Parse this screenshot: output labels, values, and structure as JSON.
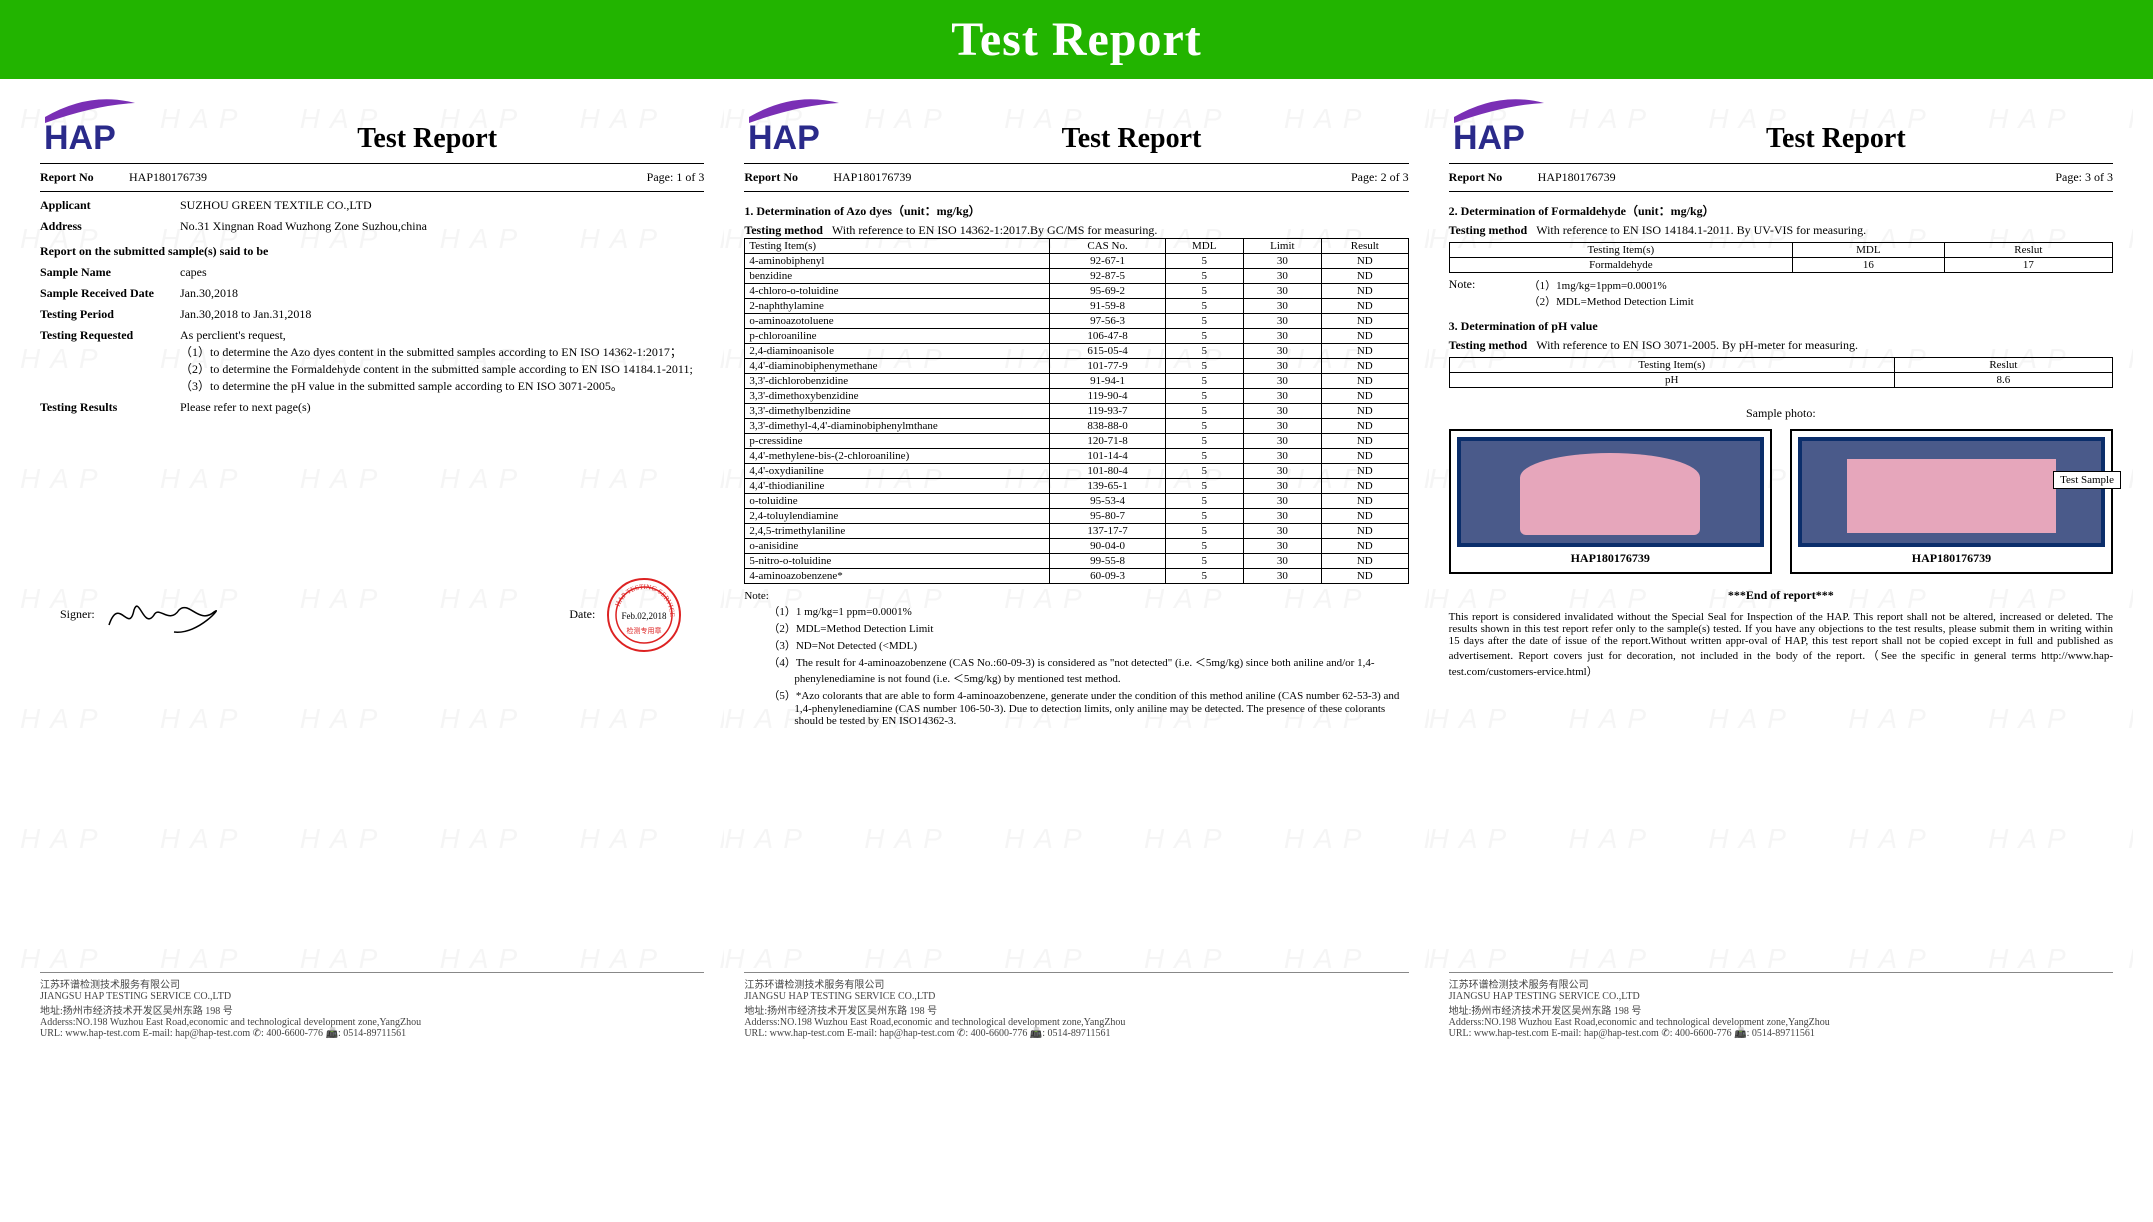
{
  "banner": {
    "title": "Test Report",
    "bg": "#22b400",
    "fg": "#ffffff"
  },
  "logo": {
    "text": "HAP",
    "swoosh_color": "#7a2fb5",
    "text_color": "#2a2a8a"
  },
  "common": {
    "page_title": "Test Report",
    "report_no_label": "Report No",
    "report_no": "HAP180176739",
    "page_label": "Page:"
  },
  "page1": {
    "page_of": "1 of 3",
    "applicant_label": "Applicant",
    "applicant": "SUZHOU GREEN TEXTILE CO.,LTD",
    "address_label": "Address",
    "address": "No.31 Xingnan Road Wuzhong Zone Suzhou,china",
    "sample_header": "Report on the submitted sample(s) said to be",
    "sample_name_label": "Sample Name",
    "sample_name": "capes",
    "recv_label": "Sample Received Date",
    "recv": "Jan.30,2018",
    "period_label": "Testing Period",
    "period": "Jan.30,2018 to Jan.31,2018",
    "req_label": "Testing Requested",
    "req_intro": "As perclient's request,",
    "req_items": [
      "（1）to determine the Azo dyes content in the submitted samples according to EN ISO 14362-1:2017；",
      "（2）to determine the Formaldehyde content in the submitted sample according to EN ISO 14184.1-2011;",
      "（3）to determine the pH value in the submitted sample according to EN ISO 3071-2005。"
    ],
    "results_label": "Testing Results",
    "results": "Please refer to next page(s)",
    "signer_label": "Signer:",
    "date_label": "Date:",
    "date": "Feb.02,2018"
  },
  "page2": {
    "page_of": "2 of 3",
    "sect1_title": "1. Determination of Azo dyes（unit：mg/kg）",
    "method_label": "Testing method",
    "method": "With reference to EN ISO 14362-1:2017.By GC/MS for measuring.",
    "columns": [
      "Testing Item(s)",
      "CAS No.",
      "MDL",
      "Limit",
      "Result"
    ],
    "rows": [
      [
        "4-aminobiphenyl",
        "92-67-1",
        "5",
        "30",
        "ND"
      ],
      [
        "benzidine",
        "92-87-5",
        "5",
        "30",
        "ND"
      ],
      [
        "4-chloro-o-toluidine",
        "95-69-2",
        "5",
        "30",
        "ND"
      ],
      [
        "2-naphthylamine",
        "91-59-8",
        "5",
        "30",
        "ND"
      ],
      [
        "o-aminoazotoluene",
        "97-56-3",
        "5",
        "30",
        "ND"
      ],
      [
        "p-chloroaniline",
        "106-47-8",
        "5",
        "30",
        "ND"
      ],
      [
        "2,4-diaminoanisole",
        "615-05-4",
        "5",
        "30",
        "ND"
      ],
      [
        "4,4'-diaminobiphenymethane",
        "101-77-9",
        "5",
        "30",
        "ND"
      ],
      [
        "3,3'-dichlorobenzidine",
        "91-94-1",
        "5",
        "30",
        "ND"
      ],
      [
        "3,3'-dimethoxybenzidine",
        "119-90-4",
        "5",
        "30",
        "ND"
      ],
      [
        "3,3'-dimethylbenzidine",
        "119-93-7",
        "5",
        "30",
        "ND"
      ],
      [
        "3,3'-dimethyl-4,4'-diaminobiphenylmthane",
        "838-88-0",
        "5",
        "30",
        "ND"
      ],
      [
        "p-cressidine",
        "120-71-8",
        "5",
        "30",
        "ND"
      ],
      [
        "4,4'-methylene-bis-(2-chloroaniline)",
        "101-14-4",
        "5",
        "30",
        "ND"
      ],
      [
        "4,4'-oxydianiline",
        "101-80-4",
        "5",
        "30",
        "ND"
      ],
      [
        "4,4'-thiodianiline",
        "139-65-1",
        "5",
        "30",
        "ND"
      ],
      [
        "o-toluidine",
        "95-53-4",
        "5",
        "30",
        "ND"
      ],
      [
        "2,4-toluylendiamine",
        "95-80-7",
        "5",
        "30",
        "ND"
      ],
      [
        "2,4,5-trimethylaniline",
        "137-17-7",
        "5",
        "30",
        "ND"
      ],
      [
        "o-anisidine",
        "90-04-0",
        "5",
        "30",
        "ND"
      ],
      [
        "5-nitro-o-toluidine",
        "99-55-8",
        "5",
        "30",
        "ND"
      ],
      [
        "4-aminoazobenzene*",
        "60-09-3",
        "5",
        "30",
        "ND"
      ]
    ],
    "note_label": "Note:",
    "notes": [
      "（1）1 mg/kg=1 ppm=0.0001%",
      "（2）MDL=Method Detection Limit",
      "（3）ND=Not Detected (<MDL)",
      "（4）The result for 4-aminoazobenzene (CAS No.:60-09-3) is considered as \"not detected\" (i.e. ＜5mg/kg) since both aniline and/or 1,4-phenylenediamine is not found (i.e. ＜5mg/kg) by mentioned test method.",
      "（5）*Azo colorants that are able to form 4-aminoazobenzene, generate under the condition of this method aniline (CAS number 62-53-3) and 1,4-phenylenediamine (CAS number 106-50-3). Due to detection limits, only aniline may be detected. The presence of these colorants should be tested by EN ISO14362-3."
    ]
  },
  "page3": {
    "page_of": "3 of 3",
    "sect2_title": "2. Determination of Formaldehyde（unit：mg/kg）",
    "method_label": "Testing method",
    "method2": "With reference to EN ISO 14184.1-2011. By UV-VIS for measuring.",
    "f_columns": [
      "Testing Item(s)",
      "MDL",
      "Reslut"
    ],
    "f_rows": [
      [
        "Formaldehyde",
        "16",
        "17"
      ]
    ],
    "f_note_label": "Note:",
    "f_notes": [
      "（1）1mg/kg=1ppm=0.0001%",
      "（2）MDL=Method Detection Limit"
    ],
    "sect3_title": "3. Determination of pH value",
    "method3": "With reference to EN ISO 3071-2005. By pH-meter for measuring.",
    "ph_columns": [
      "Testing Item(s)",
      "Reslut"
    ],
    "ph_rows": [
      [
        "pH",
        "8.6"
      ]
    ],
    "sample_photo_label": "Sample photo:",
    "photo_caption": "HAP180176739",
    "test_sample_label": "Test Sample",
    "end": "***End of report***",
    "disclaimer": "This report is considered invalidated without the Special Seal for Inspection of the HAP. This report shall not be altered, increased or deleted. The results shown in this test report refer only to the sample(s) tested.   If you have any objections to the test results, please submit them in writing within 15 days after the date of issue of the report.Without written appr⁠-oval  of HAP,    this test report shall not be copied except in full and published as advertisement. Report covers just for decoration, not included in the body of the report.（See the specific in general terms http://www.hap-test.com/customers⁠-ervice.html）"
  },
  "footer": {
    "line1_cn": "江苏环谱检测技术服务有限公司",
    "line1_en": "JIANGSU HAP TESTING SERVICE CO.,LTD",
    "line2_cn": "地址:扬州市经济技术开发区吴州东路 198 号",
    "line2_en": "Adderss:NO.198 Wuzhou East Road,economic and technological development zone,YangZhou",
    "line3": "URL:   www.hap-test.com      E-mail:  hap@hap-test.com      ✆: 400-6600-776   📠: 0514-89711561"
  }
}
